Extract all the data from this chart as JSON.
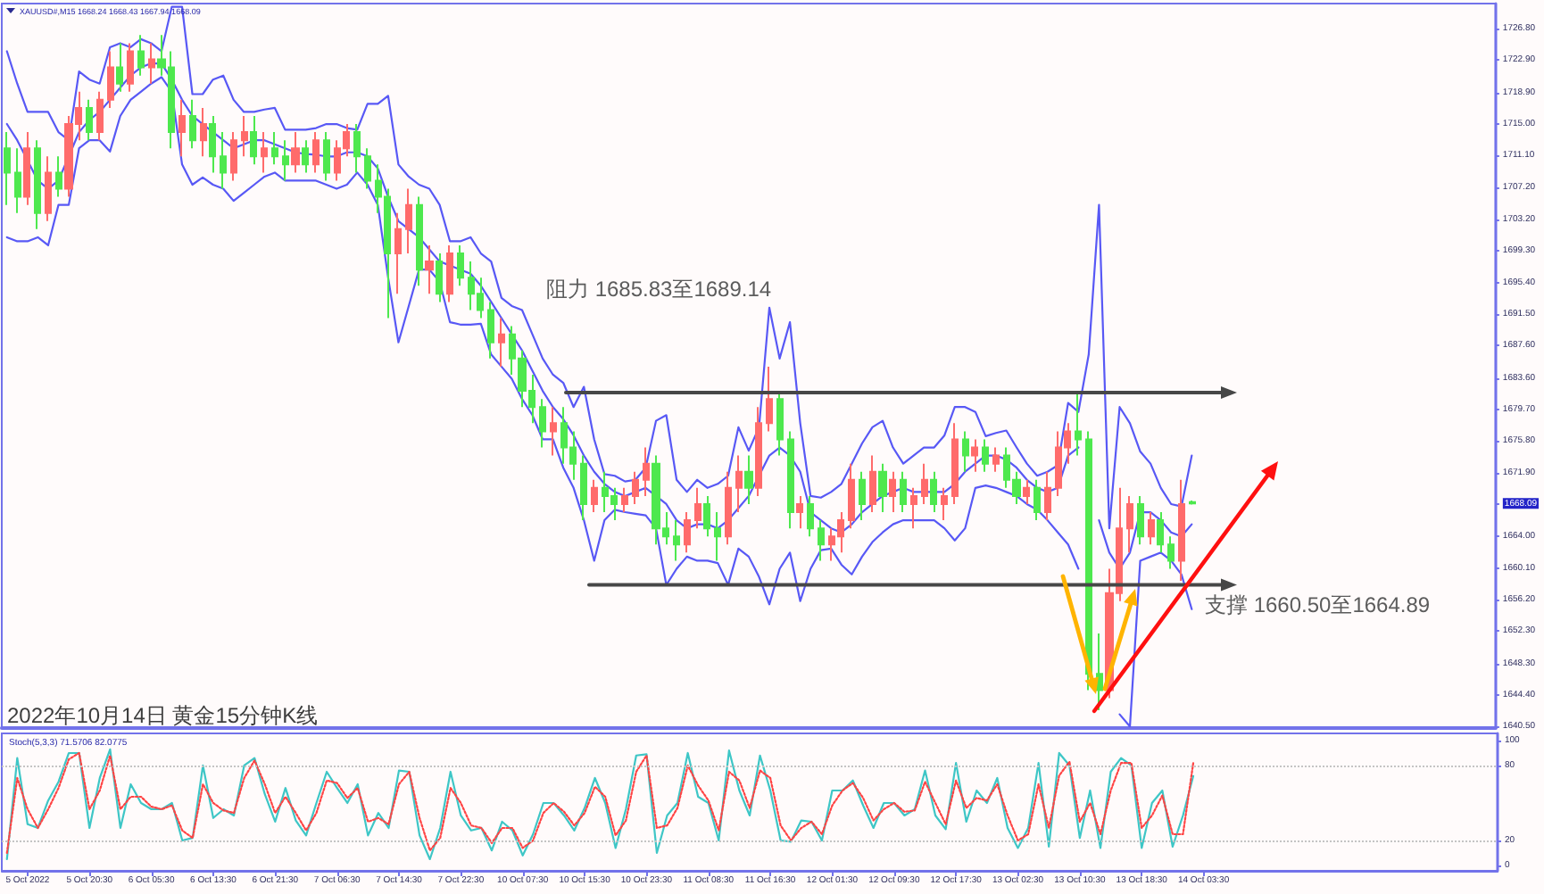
{
  "chart_data": [
    {
      "type": "candlestick",
      "title": "XAUUSD#,M15 1668.24 1668.43 1667.94 1668.09",
      "categories": [
        null,
        null,
        null,
        null,
        null,
        null,
        null,
        null,
        null,
        null,
        null,
        null,
        null,
        null,
        null,
        null,
        null,
        null,
        null,
        null,
        null,
        null,
        null,
        null,
        null,
        null,
        null,
        null,
        null,
        null,
        null,
        null,
        null,
        null,
        null,
        null,
        null,
        null,
        null,
        null,
        null,
        null,
        null,
        null,
        null,
        null,
        null,
        null,
        null,
        null,
        null,
        null,
        null,
        null,
        null,
        null,
        null,
        null,
        null,
        null,
        null,
        null,
        null,
        null,
        null,
        null,
        null,
        null,
        null,
        null,
        null,
        null,
        null,
        null,
        null,
        null,
        null,
        null,
        null,
        null,
        null,
        null,
        null,
        null,
        null,
        null,
        null,
        null,
        null,
        null,
        null,
        null,
        null,
        null,
        null,
        null,
        null,
        null,
        null,
        null,
        null,
        null,
        null,
        null,
        null,
        null,
        null,
        null,
        null,
        null,
        null,
        null,
        null,
        null,
        null,
        null,
        null,
        null,
        null,
        null,
        null,
        null,
        null,
        null,
        null,
        null,
        null,
        null,
        null,
        null,
        null,
        null,
        null,
        null,
        null,
        null,
        null,
        null,
        null,
        null,
        null,
        null,
        null,
        null,
        null
      ],
      "ohlc": [
        [
          1712,
          1714,
          1705,
          1709
        ],
        [
          1709,
          1712,
          1704,
          1706
        ],
        [
          1706,
          1714,
          1705,
          1712
        ],
        [
          1712,
          1713,
          1702,
          1704
        ],
        [
          1704,
          1711,
          1703,
          1709
        ],
        [
          1709,
          1711,
          1706,
          1707
        ],
        [
          1707,
          1716,
          1706,
          1715
        ],
        [
          1715,
          1719,
          1713,
          1717
        ],
        [
          1717,
          1718,
          1713,
          1714
        ],
        [
          1714,
          1719,
          1713,
          1718
        ],
        [
          1718,
          1724,
          1717,
          1722
        ],
        [
          1722,
          1725,
          1719,
          1720
        ],
        [
          1720,
          1725,
          1719,
          1724
        ],
        [
          1724,
          1726,
          1721,
          1722
        ],
        [
          1722,
          1725,
          1720,
          1723
        ],
        [
          1723,
          1726,
          1721,
          1722
        ],
        [
          1722,
          1724,
          1712,
          1714
        ],
        [
          1714,
          1718,
          1711,
          1716
        ],
        [
          1716,
          1718,
          1712,
          1713
        ],
        [
          1713,
          1717,
          1711,
          1715
        ],
        [
          1715,
          1716,
          1709,
          1711
        ],
        [
          1711,
          1714,
          1707,
          1709
        ],
        [
          1709,
          1714,
          1708,
          1713
        ],
        [
          1713,
          1716,
          1711,
          1714
        ],
        [
          1714,
          1716,
          1710,
          1711
        ],
        [
          1711,
          1714,
          1709,
          1712
        ],
        [
          1712,
          1714,
          1710,
          1711
        ],
        [
          1711,
          1713,
          1708,
          1710
        ],
        [
          1710,
          1714,
          1709,
          1712
        ],
        [
          1712,
          1713,
          1709,
          1710
        ],
        [
          1710,
          1714,
          1709,
          1713
        ],
        [
          1713,
          1714,
          1708,
          1709
        ],
        [
          1709,
          1713,
          1708,
          1712
        ],
        [
          1712,
          1715,
          1711,
          1714
        ],
        [
          1714,
          1715,
          1709,
          1711
        ],
        [
          1711,
          1712,
          1707,
          1708
        ],
        [
          1708,
          1710,
          1704,
          1706
        ],
        [
          1706,
          1707,
          1691,
          1699
        ],
        [
          1699,
          1704,
          1694,
          1702
        ],
        [
          1702,
          1707,
          1699,
          1705
        ],
        [
          1705,
          1706,
          1695,
          1697
        ],
        [
          1697,
          1700,
          1694,
          1698
        ],
        [
          1698,
          1699,
          1693,
          1694
        ],
        [
          1694,
          1700,
          1693,
          1699
        ],
        [
          1699,
          1700,
          1695,
          1696
        ],
        [
          1696,
          1698,
          1692,
          1694
        ],
        [
          1694,
          1696,
          1691,
          1692
        ],
        [
          1692,
          1693,
          1686,
          1688
        ],
        [
          1688,
          1691,
          1685,
          1689
        ],
        [
          1689,
          1690,
          1684,
          1686
        ],
        [
          1686,
          1687,
          1680,
          1682
        ],
        [
          1682,
          1684,
          1678,
          1680
        ],
        [
          1680,
          1681,
          1675,
          1677
        ],
        [
          1677,
          1680,
          1674,
          1678
        ],
        [
          1678,
          1680,
          1673,
          1675
        ],
        [
          1675,
          1677,
          1671,
          1673
        ],
        [
          1673,
          1674,
          1666,
          1668
        ],
        [
          1668,
          1671,
          1667,
          1670
        ],
        [
          1670,
          1672,
          1667,
          1669
        ],
        [
          1669,
          1670,
          1666,
          1668
        ],
        [
          1668,
          1670,
          1667,
          1669
        ],
        [
          1669,
          1672,
          1668,
          1671
        ],
        [
          1671,
          1675,
          1669,
          1673
        ],
        [
          1673,
          1674,
          1663,
          1665
        ],
        [
          1665,
          1667,
          1663,
          1664
        ],
        [
          1664,
          1666,
          1661,
          1663
        ],
        [
          1663,
          1667,
          1662,
          1666
        ],
        [
          1666,
          1670,
          1665,
          1668
        ],
        [
          1668,
          1669,
          1664,
          1665
        ],
        [
          1665,
          1667,
          1661,
          1664
        ],
        [
          1664,
          1672,
          1663,
          1670
        ],
        [
          1670,
          1674,
          1667,
          1672
        ],
        [
          1672,
          1674,
          1668,
          1670
        ],
        [
          1670,
          1680,
          1669,
          1678
        ],
        [
          1678,
          1685,
          1677,
          1681
        ],
        [
          1681,
          1682,
          1674,
          1676
        ],
        [
          1676,
          1677,
          1665,
          1667
        ],
        [
          1667,
          1669,
          1665,
          1668
        ],
        [
          1668,
          1669,
          1664,
          1665
        ],
        [
          1665,
          1666,
          1661,
          1663
        ],
        [
          1663,
          1665,
          1661,
          1664
        ],
        [
          1664,
          1667,
          1662,
          1666
        ],
        [
          1666,
          1673,
          1665,
          1671
        ],
        [
          1671,
          1672,
          1666,
          1668
        ],
        [
          1668,
          1674,
          1667,
          1672
        ],
        [
          1672,
          1673,
          1667,
          1669
        ],
        [
          1669,
          1672,
          1667,
          1671
        ],
        [
          1671,
          1672,
          1667,
          1668
        ],
        [
          1668,
          1670,
          1665,
          1669
        ],
        [
          1669,
          1673,
          1668,
          1671
        ],
        [
          1671,
          1672,
          1667,
          1668
        ],
        [
          1668,
          1670,
          1666,
          1669
        ],
        [
          1669,
          1678,
          1668,
          1676
        ],
        [
          1676,
          1677,
          1672,
          1674
        ],
        [
          1674,
          1676,
          1672,
          1675
        ],
        [
          1675,
          1676,
          1672,
          1673
        ],
        [
          1673,
          1675,
          1672,
          1674
        ],
        [
          1674,
          1675,
          1670,
          1671
        ],
        [
          1671,
          1672,
          1668,
          1669
        ],
        [
          1669,
          1671,
          1668,
          1670
        ],
        [
          1670,
          1671,
          1666,
          1667
        ],
        [
          1667,
          1672,
          1666,
          1670
        ],
        [
          1670,
          1677,
          1669,
          1675
        ],
        [
          1675,
          1678,
          1673,
          1677
        ],
        [
          1677,
          1682,
          1674,
          1676
        ],
        [
          1676,
          1677,
          1645,
          1647
        ],
        [
          1647,
          1652,
          1642.5,
          1645
        ],
        [
          1645,
          1660,
          1644,
          1657
        ],
        [
          1657,
          1670,
          1656,
          1665
        ],
        [
          1665,
          1669,
          1662,
          1668
        ],
        [
          1668,
          1669,
          1663,
          1664
        ],
        [
          1664,
          1667,
          1663,
          1666
        ],
        [
          1666,
          1667,
          1662,
          1663
        ],
        [
          1663,
          1664,
          1660,
          1661
        ],
        [
          1661,
          1671,
          1658.5,
          1668
        ],
        [
          1668.24,
          1668.43,
          1667.94,
          1668.09
        ],
        null,
        null,
        null,
        null,
        null,
        null,
        null,
        null,
        null,
        null,
        null,
        null,
        null,
        null,
        null,
        null,
        null,
        null,
        null,
        null,
        null,
        null,
        null,
        null,
        null,
        null,
        null,
        null,
        null
      ],
      "colors": [
        "#4ee84e",
        "#4ee84e",
        "#ff6b6b",
        "#4ee84e",
        "#ff6b6b",
        "#4ee84e",
        "#ff6b6b",
        "#ff6b6b",
        "#4ee84e",
        "#ff6b6b",
        "#ff6b6b",
        "#4ee84e",
        "#ff6b6b",
        "#4ee84e",
        "#ff6b6b",
        "#4ee84e",
        "#4ee84e",
        "#ff6b6b",
        "#4ee84e",
        "#ff6b6b",
        "#4ee84e",
        "#4ee84e",
        "#ff6b6b",
        "#ff6b6b",
        "#4ee84e",
        "#ff6b6b",
        "#4ee84e",
        "#4ee84e",
        "#ff6b6b",
        "#4ee84e",
        "#ff6b6b",
        "#4ee84e",
        "#ff6b6b",
        "#ff6b6b",
        "#4ee84e",
        "#4ee84e",
        "#4ee84e",
        "#4ee84e",
        "#ff6b6b",
        "#ff6b6b",
        "#4ee84e",
        "#ff6b6b",
        "#4ee84e",
        "#ff6b6b",
        "#4ee84e",
        "#4ee84e",
        "#4ee84e",
        "#4ee84e",
        "#ff6b6b",
        "#4ee84e",
        "#4ee84e",
        "#4ee84e",
        "#4ee84e",
        "#ff6b6b",
        "#4ee84e",
        "#4ee84e",
        "#4ee84e",
        "#ff6b6b",
        "#4ee84e",
        "#4ee84e",
        "#ff6b6b",
        "#ff6b6b",
        "#ff6b6b",
        "#4ee84e",
        "#4ee84e",
        "#4ee84e",
        "#ff6b6b",
        "#ff6b6b",
        "#4ee84e",
        "#4ee84e",
        "#ff6b6b",
        "#ff6b6b",
        "#4ee84e",
        "#ff6b6b",
        "#ff6b6b",
        "#4ee84e",
        "#4ee84e",
        "#ff6b6b",
        "#4ee84e",
        "#4ee84e",
        "#ff6b6b",
        "#ff6b6b",
        "#ff6b6b",
        "#4ee84e",
        "#ff6b6b",
        "#4ee84e",
        "#ff6b6b",
        "#4ee84e",
        "#ff6b6b",
        "#ff6b6b",
        "#4ee84e",
        "#ff6b6b",
        "#ff6b6b",
        "#4ee84e",
        "#ff6b6b",
        "#4ee84e",
        "#ff6b6b",
        "#4ee84e",
        "#4ee84e",
        "#ff6b6b",
        "#4ee84e",
        "#ff6b6b",
        "#ff6b6b",
        "#ff6b6b",
        "#4ee84e",
        "#4ee84e",
        "#4ee84e",
        "#ff6b6b",
        "#ff6b6b",
        "#ff6b6b",
        "#4ee84e",
        "#ff6b6b",
        "#4ee84e",
        "#4ee84e",
        "#ff6b6b",
        "#4ee84e",
        null,
        null,
        null,
        null,
        null,
        null,
        null,
        null,
        null,
        null,
        null,
        null,
        null,
        null,
        null,
        null,
        null,
        null,
        null,
        null,
        null,
        null,
        null,
        null,
        null,
        null,
        null,
        null,
        null
      ],
      "series": [
        {
          "type": "line",
          "color": "#5858f5",
          "values": [
            1724,
            1720,
            1716.5,
            1716.5,
            1716.5,
            1714,
            1713,
            1721.5,
            1720.5,
            1720,
            1724.5,
            1725,
            1724.5,
            1725.5,
            1725,
            1724,
            1729.5,
            1729.5,
            1718.7,
            1718.7,
            1720.5,
            1721,
            1718,
            1716.5,
            1716.5,
            1716.8,
            1717,
            1714.3,
            1714.3,
            1714.3,
            1714.5,
            1715,
            1715,
            1714.5,
            1714.3,
            1717.5,
            1717.5,
            1718.5,
            1710,
            1708.5,
            1707.5,
            1707,
            1705,
            1700.5,
            1700.5,
            1701,
            1699,
            1698,
            1693.5,
            1692.5,
            1692,
            1689,
            1686,
            1684,
            1683,
            1680,
            1682.5,
            1676,
            1671.7,
            1671.5,
            1670.8,
            1671,
            1672.5,
            1678.3,
            1679,
            1671,
            1669.5,
            1671,
            1670,
            1670.5,
            1671.5,
            1677.5,
            1674.6,
            1677.5,
            1692.3,
            1686,
            1690.5,
            1678,
            1669,
            1668.8,
            1669.5,
            1670.5,
            1673,
            1675.5,
            1677.5,
            1678.3,
            1675,
            1673,
            1674,
            1675,
            1675,
            1676.5,
            1680,
            1680,
            1679.4,
            1676.4,
            1676.8,
            1677.1,
            1675,
            1673,
            1671.5,
            1672,
            1672.8,
            1680.5,
            1679.4,
            1686.5,
            1705,
            1665,
            1680,
            1678,
            1674.5,
            1673,
            1670,
            1668,
            1667.7,
            1674,
            null,
            null,
            null,
            null,
            null,
            null,
            null,
            null,
            null,
            null,
            null,
            null,
            null,
            null,
            null,
            null,
            null,
            null,
            null,
            null,
            null,
            null,
            null,
            null,
            null,
            null,
            null,
            null,
            null
          ]
        },
        {
          "type": "line",
          "color": "#5858f5",
          "values": [
            1715,
            1713,
            1710.5,
            1708,
            1707,
            1708,
            1711,
            1714,
            1715.5,
            1716.5,
            1718,
            1719.5,
            1721,
            1722,
            1722.5,
            1722.5,
            1720.5,
            1718,
            1716,
            1715,
            1714,
            1713,
            1712,
            1712.5,
            1713,
            1713,
            1712.5,
            1712,
            1711.5,
            1711.3,
            1711.2,
            1711,
            1711,
            1711.5,
            1711.5,
            1711,
            1709.5,
            1706,
            1703,
            1702,
            1701,
            1699.5,
            1698,
            1697.5,
            1697,
            1696.5,
            1695,
            1693,
            1691,
            1689,
            1687,
            1684.5,
            1682,
            1680,
            1678.5,
            1676.5,
            1674,
            1672,
            1670.5,
            1669.5,
            1669,
            1669.5,
            1670,
            1669,
            1668,
            1666,
            1665,
            1665.5,
            1665.5,
            1665,
            1666,
            1667.5,
            1669,
            1671.5,
            1674,
            1675,
            1674,
            1672,
            1667,
            1666,
            1665,
            1664.5,
            1665.5,
            1667,
            1668,
            1669,
            1669.5,
            1670,
            1669.5,
            1669.5,
            1669.5,
            1669.5,
            1670.5,
            1672,
            1673,
            1674,
            1674,
            1673.5,
            1672.5,
            1671,
            1670,
            1669.5,
            1670,
            1674,
            1675,
            null,
            1666,
            1662,
            1660,
            1662,
            1667,
            1667,
            1666,
            1664.5,
            1664,
            1665.5,
            null,
            null,
            null,
            null,
            null,
            null,
            null,
            null,
            null,
            null,
            null,
            null,
            null,
            null,
            null,
            null,
            null,
            null,
            null,
            null,
            null,
            null,
            null,
            null,
            null,
            null,
            null,
            null,
            null
          ]
        },
        {
          "type": "line",
          "color": "#5858f5",
          "values": [
            1701,
            1700.5,
            1700.5,
            1701,
            1700,
            1705,
            1705,
            1712,
            1713,
            1713,
            1711.6,
            1716,
            1718,
            1719,
            1720,
            1720.8,
            1719,
            1710,
            1707.5,
            1708.4,
            1707.5,
            1707,
            1705.5,
            1706.5,
            1707.5,
            1708.5,
            1709,
            1708,
            1708,
            1708,
            1708,
            1707.5,
            1707,
            1707.5,
            1709,
            1707.5,
            1705,
            1696,
            1688,
            1692.5,
            1697,
            1697,
            1695.5,
            1690.5,
            1690.2,
            1690.2,
            1690.3,
            1686.5,
            1685,
            1683.5,
            1681,
            1679,
            1676,
            1676,
            1672.5,
            1670,
            1666,
            1661,
            1666,
            1667.3,
            1667,
            1666.8,
            1666.6,
            1665,
            1658,
            1660,
            1661.5,
            1661,
            1661,
            1660.7,
            1658,
            1662.5,
            1661.5,
            1659,
            1655.6,
            1660,
            1662,
            1656,
            1660,
            1662.3,
            1662.5,
            1660.5,
            1659.3,
            1661.5,
            1663.3,
            1664.5,
            1665.5,
            1666,
            1666,
            1666,
            1666,
            1665,
            1663.5,
            1665,
            1670,
            1670.3,
            1670,
            1669.5,
            1669,
            1668,
            1667.3,
            1666,
            1664.5,
            1663,
            1660,
            null,
            null,
            null,
            1642,
            1640.5,
            1661,
            1661.5,
            1662,
            1661,
            1659.3,
            1655,
            null,
            null,
            null,
            null,
            null,
            null,
            null,
            null,
            null,
            null,
            null,
            null,
            null,
            null,
            null,
            null,
            null,
            null,
            null,
            null,
            null,
            null,
            null,
            null,
            null,
            null,
            null,
            null,
            null
          ]
        }
      ],
      "ylim": [
        1640.3,
        1729.9
      ],
      "yticks": [
        {
          "value": 1640.5,
          "label": "1640.50"
        },
        {
          "value": 1644.4,
          "label": "1644.40"
        },
        {
          "value": 1648.3,
          "label": "1648.30"
        },
        {
          "value": 1652.3,
          "label": "1652.30"
        },
        {
          "value": 1656.2,
          "label": "1656.20"
        },
        {
          "value": 1660.1,
          "label": "1660.10"
        },
        {
          "value": 1664,
          "label": "1664.00"
        },
        1668.09,
        {
          "value": 1671.9,
          "label": "1671.90"
        },
        {
          "value": 1675.8,
          "label": "1675.80"
        },
        {
          "value": 1679.7,
          "label": "1679.70"
        },
        {
          "value": 1683.6,
          "label": "1683.60"
        },
        {
          "value": 1687.6,
          "label": "1687.60"
        },
        {
          "value": 1691.5,
          "label": "1691.50"
        },
        {
          "value": 1695.4,
          "label": "1695.40"
        },
        {
          "value": 1699.3,
          "label": "1699.30"
        },
        {
          "value": 1703.2,
          "label": "1703.20"
        },
        {
          "value": 1707.2,
          "label": "1707.20"
        },
        {
          "value": 1711.1,
          "label": "1711.10"
        },
        {
          "value": 1715,
          "label": "1715.00"
        },
        {
          "value": 1718.9,
          "label": "1718.90"
        },
        {
          "value": 1722.9,
          "label": "1722.90"
        },
        {
          "value": 1726.8,
          "label": "1726.80"
        }
      ],
      "annotations": [
        "阻力 1685.83至1689.14",
        "支撑 1660.50至1664.89",
        "2022年10月14日 黄金15分钟K线"
      ]
    },
    {
      "type": "line",
      "title": "Stoch(5,3,3) 71.5706 82.0775",
      "categories": [
        null,
        null,
        "5 Oct 2022",
        null,
        null,
        null,
        null,
        null,
        "5 Oct 20:30",
        null,
        null,
        null,
        null,
        null,
        "6 Oct 05:30",
        null,
        null,
        null,
        null,
        null,
        "6 Oct 13:30",
        null,
        null,
        null,
        null,
        null,
        "6 Oct 21:30",
        null,
        null,
        null,
        null,
        null,
        "7 Oct 06:30",
        null,
        null,
        null,
        null,
        null,
        "7 Oct 14:30",
        null,
        null,
        null,
        null,
        null,
        "7 Oct 22:30",
        null,
        null,
        null,
        null,
        null,
        "10 Oct 07:30",
        null,
        null,
        null,
        null,
        null,
        "10 Oct 15:30",
        null,
        null,
        null,
        null,
        null,
        "10 Oct 23:30",
        null,
        null,
        null,
        null,
        null,
        "11 Oct 08:30",
        null,
        null,
        null,
        null,
        null,
        "11 Oct 16:30",
        null,
        null,
        null,
        null,
        null,
        "12 Oct 01:30",
        null,
        null,
        null,
        null,
        null,
        "12 Oct 09:30",
        null,
        null,
        null,
        null,
        null,
        "12 Oct 17:30",
        null,
        null,
        null,
        null,
        null,
        "13 Oct 02:30",
        null,
        null,
        null,
        null,
        null,
        "13 Oct 10:30",
        null,
        null,
        null,
        null,
        null,
        "13 Oct 18:30",
        null,
        null,
        null,
        null,
        null,
        "14 Oct 03:30",
        null,
        null,
        null,
        null,
        null,
        null,
        null,
        null,
        null,
        null,
        null,
        null,
        null,
        null,
        null,
        null,
        null,
        null,
        null,
        null,
        null,
        null,
        null,
        null,
        null,
        null,
        null,
        null
      ],
      "series": [
        {
          "color": "#3ec6c6",
          "values": [
            5,
            86,
            33,
            30,
            52,
            67,
            90,
            90,
            30,
            70,
            93,
            30,
            65,
            50,
            45,
            45,
            50,
            20,
            22,
            80,
            38,
            45,
            40,
            80,
            86,
            57,
            35,
            62,
            36,
            24,
            50,
            75,
            62,
            50,
            65,
            24,
            42,
            30,
            76,
            75,
            24,
            5,
            30,
            75,
            40,
            28,
            30,
            12,
            35,
            28,
            8,
            25,
            50,
            50,
            40,
            28,
            46,
            70,
            50,
            14,
            45,
            88,
            89,
            10,
            40,
            50,
            90,
            55,
            50,
            20,
            92,
            60,
            40,
            88,
            60,
            20,
            19,
            36,
            35,
            20,
            60,
            60,
            68,
            48,
            30,
            50,
            50,
            40,
            45,
            76,
            40,
            29,
            82,
            35,
            60,
            50,
            70,
            30,
            14,
            30,
            82,
            15,
            90,
            80,
            22,
            60,
            14,
            75,
            86,
            80,
            14,
            50,
            60,
            15,
            40,
            71.5706,
            null,
            null,
            null,
            null,
            null,
            null,
            null,
            null,
            null,
            null,
            null,
            null,
            null,
            null,
            null,
            null,
            null,
            null,
            null,
            null,
            null,
            null,
            null,
            null,
            null,
            null,
            null,
            null,
            null
          ]
        },
        {
          "color": "#ff4444",
          "line_style": "dotted",
          "values": [
            10,
            70,
            45,
            30,
            45,
            62,
            85,
            90,
            45,
            60,
            88,
            45,
            55,
            55,
            47,
            45,
            48,
            28,
            22,
            65,
            50,
            44,
            42,
            70,
            84,
            65,
            42,
            55,
            42,
            28,
            42,
            68,
            66,
            54,
            62,
            35,
            38,
            33,
            65,
            75,
            38,
            12,
            22,
            62,
            50,
            32,
            30,
            18,
            30,
            30,
            14,
            20,
            42,
            50,
            43,
            32,
            42,
            63,
            55,
            24,
            36,
            75,
            88,
            30,
            32,
            46,
            80,
            64,
            52,
            28,
            75,
            68,
            46,
            76,
            70,
            32,
            20,
            30,
            35,
            25,
            48,
            60,
            66,
            54,
            36,
            45,
            50,
            43,
            44,
            67,
            50,
            33,
            68,
            46,
            54,
            52,
            65,
            40,
            20,
            25,
            65,
            30,
            72,
            83,
            35,
            50,
            25,
            60,
            82,
            82,
            30,
            40,
            56,
            25,
            25,
            82.0775,
            null,
            null,
            null,
            null,
            null,
            null,
            null,
            null,
            null,
            null,
            null,
            null,
            null,
            null,
            null,
            null,
            null,
            null,
            null,
            null,
            null,
            null,
            null,
            null,
            null,
            null,
            null,
            null,
            null
          ]
        }
      ],
      "ylim": [
        -4.3,
        105.7
      ],
      "yticks": [
        0,
        20,
        80,
        100
      ],
      "ref_lines": [
        {
          "axis": "y",
          "value": 80,
          "color": "#c4c4c4",
          "line_style": "dotted"
        },
        {
          "axis": "y",
          "value": 20,
          "color": "#c4c4c4",
          "line_style": "dotted"
        }
      ]
    }
  ]
}
